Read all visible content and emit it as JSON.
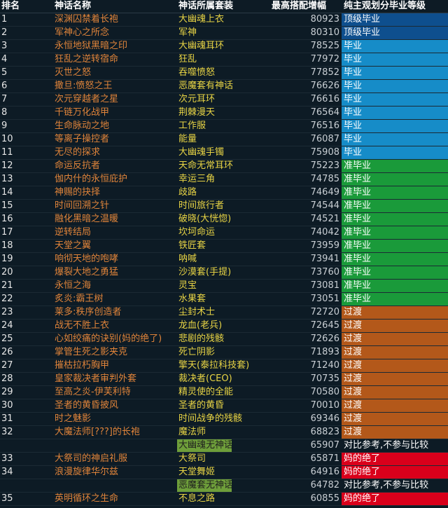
{
  "headers": {
    "rank": "排名",
    "name": "神话名称",
    "set": "神话所属套装",
    "value": "最高搭配增幅",
    "tier": "纯主观划分毕业等级"
  },
  "tier_colors": {
    "顶级毕业": "#0e4f8e",
    "毕业": "#168cc8",
    "准毕业": "#1a9a3a",
    "过渡": "#b3581a",
    "对比参考,不参与比较": "#0d1b25",
    "妈的绝了": "#d9001b"
  },
  "rows": [
    {
      "rank": "1",
      "name": "深渊囚禁着长袍",
      "set": "大幽魂上衣",
      "value": "80923",
      "tier": "顶级毕业"
    },
    {
      "rank": "2",
      "name": "军神心之所念",
      "set": "军神",
      "value": "80310",
      "tier": "顶级毕业"
    },
    {
      "rank": "3",
      "name": "永恒地狱黑暗之印",
      "set": "大幽魂耳环",
      "value": "78525",
      "tier": "毕业"
    },
    {
      "rank": "4",
      "name": "狂乱之逆转宿命",
      "set": "狂乱",
      "value": "77972",
      "tier": "毕业"
    },
    {
      "rank": "5",
      "name": "灭世之怒",
      "set": "吞噬愤怒",
      "value": "77852",
      "tier": "毕业"
    },
    {
      "rank": "6",
      "name": "撒旦:愤怒之王",
      "set": "恶魔套有神话",
      "value": "76626",
      "tier": "毕业"
    },
    {
      "rank": "7",
      "name": "次元穿越者之星",
      "set": "次元耳环",
      "value": "76616",
      "tier": "毕业"
    },
    {
      "rank": "8",
      "name": "千链万化战甲",
      "set": "荆棘漫天",
      "value": "76564",
      "tier": "毕业"
    },
    {
      "rank": "9",
      "name": "生命脉动之地",
      "set": "工作服",
      "value": "76516",
      "tier": "毕业"
    },
    {
      "rank": "10",
      "name": "等离子操控者",
      "set": "能量",
      "value": "76087",
      "tier": "毕业"
    },
    {
      "rank": "11",
      "name": "无尽的探求",
      "set": "大幽魂手镯",
      "value": "75908",
      "tier": "毕业"
    },
    {
      "rank": "12",
      "name": "命运反抗者",
      "set": "天命无常耳环",
      "value": "75223",
      "tier": "准毕业"
    },
    {
      "rank": "13",
      "name": "伽内什的永恒庇护",
      "set": "幸运三角",
      "value": "74785",
      "tier": "准毕业"
    },
    {
      "rank": "14",
      "name": "神赐的抉择",
      "set": "歧路",
      "value": "74649",
      "tier": "准毕业"
    },
    {
      "rank": "15",
      "name": "时间回溯之针",
      "set": "时间旅行者",
      "value": "74544",
      "tier": "准毕业"
    },
    {
      "rank": "16",
      "name": "融化黑暗之温暖",
      "set": "破晓(大恍惚)",
      "value": "74521",
      "tier": "准毕业"
    },
    {
      "rank": "17",
      "name": "逆转结局",
      "set": "坎坷命运",
      "value": "74042",
      "tier": "准毕业"
    },
    {
      "rank": "18",
      "name": "天堂之翼",
      "set": "铁匠套",
      "value": "73959",
      "tier": "准毕业"
    },
    {
      "rank": "19",
      "name": "响彻天地的咆哮",
      "set": "呐喊",
      "value": "73941",
      "tier": "准毕业"
    },
    {
      "rank": "20",
      "name": "爆裂大地之勇猛",
      "set": "沙漠套(手提)",
      "value": "73760",
      "tier": "准毕业"
    },
    {
      "rank": "21",
      "name": "永恒之海",
      "set": "灵宝",
      "value": "73081",
      "tier": "准毕业"
    },
    {
      "rank": "22",
      "name": "炙炎:霸王树",
      "set": "水果套",
      "value": "73051",
      "tier": "准毕业"
    },
    {
      "rank": "23",
      "name": "莱多:秩序创造者",
      "set": "尘封术士",
      "value": "72720",
      "tier": "过渡"
    },
    {
      "rank": "24",
      "name": "战无不胜上衣",
      "set": "龙血(老兵)",
      "value": "72645",
      "tier": "过渡"
    },
    {
      "rank": "25",
      "name": "心如绞痛的诀别(妈的绝了)",
      "set": "悲剧的残骸",
      "value": "72626",
      "tier": "过渡"
    },
    {
      "rank": "26",
      "name": "掌管生死之影夹克",
      "set": "死亡阴影",
      "value": "71893",
      "tier": "过渡"
    },
    {
      "rank": "27",
      "name": "摧枯拉朽胸甲",
      "set": "擎天(泰拉科技套)",
      "value": "71240",
      "tier": "过渡"
    },
    {
      "rank": "28",
      "name": "皇家裁决者审判外套",
      "set": "裁决者(CEO)",
      "value": "70735",
      "tier": "过渡"
    },
    {
      "rank": "29",
      "name": "至高之炎-伊芙利特",
      "set": "精灵使的全能",
      "value": "70580",
      "tier": "过渡"
    },
    {
      "rank": "30",
      "name": "圣者的黄昏披风",
      "set": "圣者的黄昏",
      "value": "70010",
      "tier": "过渡"
    },
    {
      "rank": "31",
      "name": "时之魅影",
      "set": "时间战争的残骸",
      "value": "69346",
      "tier": "过渡"
    },
    {
      "rank": "32",
      "name": "大魔法师[???]的长袍",
      "set": "魔法师",
      "value": "68823",
      "tier": "过渡"
    },
    {
      "rank": "",
      "name": "",
      "set": "大幽魂无神话",
      "value": "65907",
      "tier": "对比参考,不参与比较",
      "set_highlight": true
    },
    {
      "rank": "33",
      "name": "大祭司的神启礼服",
      "set": "大祭司",
      "value": "65871",
      "tier": "妈的绝了"
    },
    {
      "rank": "34",
      "name": "浪漫旋律华尔兹",
      "set": "天堂舞姬",
      "value": "64916",
      "tier": "妈的绝了"
    },
    {
      "rank": "",
      "name": "",
      "set": "恶魔套无神话",
      "value": "64782",
      "tier": "对比参考,不参与比较",
      "set_highlight": true
    },
    {
      "rank": "35",
      "name": "英明循环之生命",
      "set": "不息之路",
      "value": "60855",
      "tier": "妈的绝了"
    }
  ]
}
